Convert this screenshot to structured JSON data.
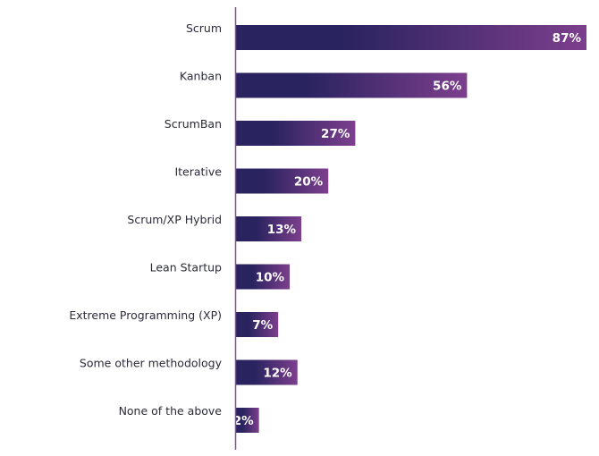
{
  "chart_data": {
    "type": "bar",
    "orientation": "horizontal",
    "categories": [
      "Scrum",
      "Kanban",
      "ScrumBan",
      "Iterative",
      "Scrum/XP Hybrid",
      "Lean Startup",
      "Extreme Programming (XP)",
      "Some other methodology",
      "None of the above"
    ],
    "values": [
      87,
      56,
      27,
      20,
      13,
      10,
      7,
      12,
      2
    ],
    "value_labels": [
      "87%",
      "56%",
      "27%",
      "20%",
      "13%",
      "10%",
      "7%",
      "12%",
      "2%"
    ],
    "title": "",
    "xlabel": "",
    "ylabel": "",
    "xlim": [
      0,
      87
    ],
    "grid": false,
    "colors": {
      "bar_start": "#29235f",
      "bar_end": "#7d3f8d",
      "axis": "#8b4c9c"
    }
  }
}
